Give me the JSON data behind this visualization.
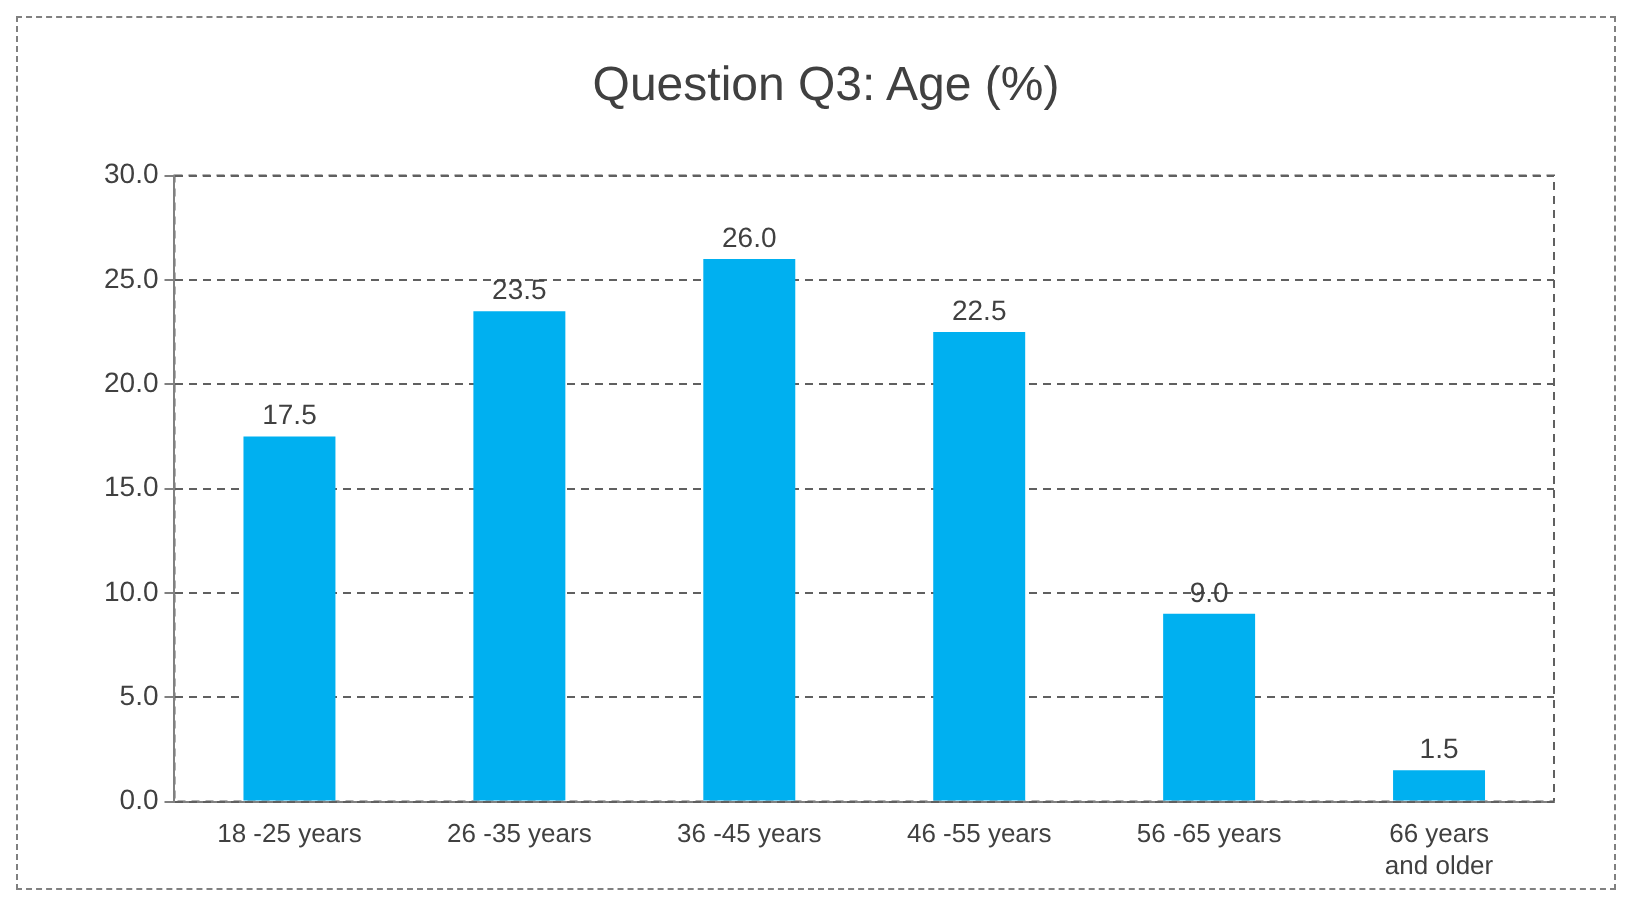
{
  "chart_data": {
    "type": "bar",
    "title": "Question Q3: Age (%)",
    "categories": [
      "18 -25 years",
      "26 -35 years",
      "36 -45 years",
      "46 -55 years",
      "56 -65 years",
      "66 years and older"
    ],
    "values": [
      17.5,
      23.5,
      26.0,
      22.5,
      9.0,
      1.5
    ],
    "color": "#00b0f0",
    "value_labels": [
      "17.5",
      "23.5",
      "26.0",
      "22.5",
      "9.0",
      "1.5"
    ],
    "ylim": [
      0,
      30
    ],
    "yticks": [
      {
        "value": 0,
        "label": "0.0"
      },
      {
        "value": 5,
        "label": "5.0"
      },
      {
        "value": 10,
        "label": "10.0"
      },
      {
        "value": 15,
        "label": "15.0"
      },
      {
        "value": 20,
        "label": "20.0"
      },
      {
        "value": 25,
        "label": "25.0"
      },
      {
        "value": 30,
        "label": "30.0"
      }
    ],
    "grid": "y",
    "legend": false
  }
}
